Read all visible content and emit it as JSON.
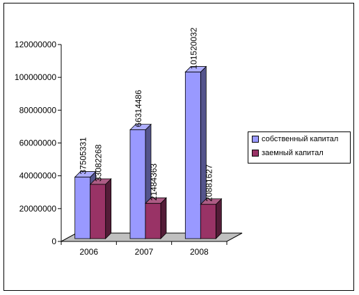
{
  "chart_data": {
    "type": "bar",
    "categories": [
      "2006",
      "2007",
      "2008"
    ],
    "series": [
      {
        "name": "собственный капитал",
        "values": [
          37505331,
          66314486,
          101520032
        ],
        "labels": [
          "37505331",
          "66314486",
          "101520032"
        ],
        "color": "#9999FF"
      },
      {
        "name": "заемный капитал",
        "values": [
          33082268,
          21484363,
          20881627
        ],
        "labels": [
          "33082268",
          "21484363",
          "20881627"
        ],
        "color": "#993366"
      }
    ],
    "ylim": [
      0,
      120000000
    ],
    "yticks": [
      "0",
      "20000000",
      "40000000",
      "60000000",
      "80000000",
      "100000000",
      "120000000"
    ],
    "title": "",
    "xlabel": "",
    "ylabel": "",
    "legend_position": "right",
    "grid": false,
    "floor_color": "#C0C0C0"
  }
}
